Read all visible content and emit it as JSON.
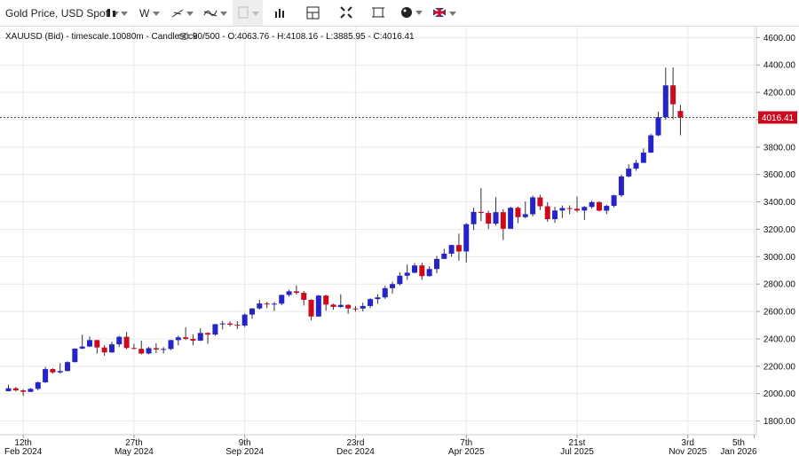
{
  "toolbar": {
    "symbol": "Gold Price, USD Spot",
    "interval": "W"
  },
  "chart_data": {
    "type": "candlestick",
    "subtitle": "XAUUSD (Bid) - timescale.10080m - Candlestick",
    "info": "90/500 - O:4063.76 - H:4108.16 - L:3885.95 - C:4016.41",
    "up_color": "#2424c8",
    "down_color": "#cc0a1e",
    "grid": true,
    "y_axis_side": "right",
    "ylim": [
      1700,
      4680
    ],
    "yticks": [
      {
        "value": 1800,
        "label": "1800.00"
      },
      {
        "value": 2000,
        "label": "2000.00"
      },
      {
        "value": 2200,
        "label": "2200.00"
      },
      {
        "value": 2400,
        "label": "2400.00"
      },
      {
        "value": 2600,
        "label": "2600.00"
      },
      {
        "value": 2800,
        "label": "2800.00"
      },
      {
        "value": 3000,
        "label": "3000.00"
      },
      {
        "value": 3200,
        "label": "3200.00"
      },
      {
        "value": 3400,
        "label": "3400.00"
      },
      {
        "value": 3600,
        "label": "3600.00"
      },
      {
        "value": 3800,
        "label": "3800.00"
      },
      {
        "value": 4000,
        "label": "4000.00"
      },
      {
        "value": 4200,
        "label": "4200.00"
      },
      {
        "value": 4400,
        "label": "4400.00"
      },
      {
        "value": 4600,
        "label": "4600.00"
      }
    ],
    "xlim": [
      "2024-01-21",
      "2026-01-07"
    ],
    "xticks": [
      {
        "value": "2024-02-12",
        "label": "12th",
        "sublabel": "Feb 2024"
      },
      {
        "value": "2024-05-27",
        "label": "27th",
        "sublabel": "May 2024"
      },
      {
        "value": "2024-09-09",
        "label": "9th",
        "sublabel": "Sep 2024"
      },
      {
        "value": "2024-12-23",
        "label": "23rd",
        "sublabel": "Dec 2024"
      },
      {
        "value": "2025-04-07",
        "label": "7th",
        "sublabel": "Apr 2025"
      },
      {
        "value": "2025-07-21",
        "label": "21st",
        "sublabel": "Jul 2025"
      },
      {
        "value": "2025-11-03",
        "label": "3rd",
        "sublabel": "Nov 2025"
      },
      {
        "value": "2026-01-05",
        "label": "5th",
        "sublabel": "Jan 2026"
      }
    ],
    "x": [
      "2024-01-29",
      "2024-02-05",
      "2024-02-12",
      "2024-02-19",
      "2024-02-26",
      "2024-03-04",
      "2024-03-11",
      "2024-03-18",
      "2024-03-25",
      "2024-04-01",
      "2024-04-08",
      "2024-04-15",
      "2024-04-22",
      "2024-04-29",
      "2024-05-06",
      "2024-05-13",
      "2024-05-20",
      "2024-05-27",
      "2024-06-03",
      "2024-06-10",
      "2024-06-17",
      "2024-06-24",
      "2024-07-01",
      "2024-07-08",
      "2024-07-15",
      "2024-07-22",
      "2024-07-29",
      "2024-08-05",
      "2024-08-12",
      "2024-08-19",
      "2024-08-26",
      "2024-09-02",
      "2024-09-09",
      "2024-09-16",
      "2024-09-23",
      "2024-09-30",
      "2024-10-07",
      "2024-10-14",
      "2024-10-21",
      "2024-10-28",
      "2024-11-04",
      "2024-11-11",
      "2024-11-18",
      "2024-11-25",
      "2024-12-02",
      "2024-12-09",
      "2024-12-16",
      "2024-12-23",
      "2024-12-30",
      "2025-01-06",
      "2025-01-13",
      "2025-01-20",
      "2025-01-27",
      "2025-02-03",
      "2025-02-10",
      "2025-02-17",
      "2025-02-24",
      "2025-03-03",
      "2025-03-10",
      "2025-03-17",
      "2025-03-24",
      "2025-03-31",
      "2025-04-07",
      "2025-04-14",
      "2025-04-21",
      "2025-04-28",
      "2025-05-05",
      "2025-05-12",
      "2025-05-19",
      "2025-05-26",
      "2025-06-02",
      "2025-06-09",
      "2025-06-16",
      "2025-06-23",
      "2025-06-30",
      "2025-07-07",
      "2025-07-14",
      "2025-07-21",
      "2025-07-28",
      "2025-08-04",
      "2025-08-11",
      "2025-08-18",
      "2025-08-25",
      "2025-09-01",
      "2025-09-08",
      "2025-09-15",
      "2025-09-22",
      "2025-09-29",
      "2025-10-06",
      "2025-10-13",
      "2025-10-20",
      "2025-10-27"
    ],
    "open": [
      2018,
      2039,
      2024,
      2013,
      2035,
      2083,
      2179,
      2155,
      2165,
      2230,
      2329,
      2344,
      2391,
      2337,
      2301,
      2360,
      2415,
      2333,
      2327,
      2293,
      2332,
      2322,
      2326,
      2391,
      2411,
      2400,
      2387,
      2443,
      2431,
      2507,
      2512,
      2503,
      2497,
      2577,
      2622,
      2658,
      2653,
      2657,
      2721,
      2747,
      2736,
      2685,
      2563,
      2716,
      2650,
      2633,
      2648,
      2622,
      2621,
      2640,
      2690,
      2703,
      2770,
      2800,
      2861,
      2883,
      2936,
      2858,
      2910,
      2984,
      3022,
      3085,
      3038,
      3237,
      3327,
      3319,
      3241,
      3325,
      3204,
      3357,
      3289,
      3310,
      3433,
      3368,
      3274,
      3337,
      3355,
      3350,
      3337,
      3363,
      3398,
      3336,
      3371,
      3448,
      3586,
      3643,
      3685,
      3760,
      3886,
      4018,
      4251,
      4063.76
    ],
    "high": [
      2065,
      2049,
      2032,
      2041,
      2088,
      2195,
      2185,
      2222,
      2236,
      2330,
      2431,
      2417,
      2392,
      2354,
      2378,
      2422,
      2450,
      2364,
      2387,
      2342,
      2368,
      2340,
      2392,
      2424,
      2483,
      2432,
      2477,
      2448,
      2509,
      2531,
      2528,
      2529,
      2586,
      2625,
      2685,
      2670,
      2670,
      2722,
      2758,
      2790,
      2750,
      2689,
      2721,
      2722,
      2657,
      2726,
      2652,
      2639,
      2664,
      2697,
      2726,
      2786,
      2817,
      2886,
      2942,
      2954,
      2956,
      2930,
      3005,
      3057,
      3087,
      3168,
      3245,
      3358,
      3500,
      3335,
      3435,
      3347,
      3366,
      3366,
      3403,
      3446,
      3452,
      3398,
      3365,
      3374,
      3375,
      3439,
      3370,
      3409,
      3405,
      3379,
      3453,
      3599,
      3674,
      3707,
      3791,
      3897,
      4059,
      4381,
      4382,
      4108.16
    ],
    "low": [
      2016,
      2015,
      1984,
      2011,
      2024,
      2078,
      2146,
      2146,
      2163,
      2228,
      2325,
      2341,
      2292,
      2277,
      2298,
      2340,
      2325,
      2323,
      2286,
      2287,
      2296,
      2293,
      2318,
      2353,
      2392,
      2353,
      2383,
      2364,
      2423,
      2470,
      2491,
      2471,
      2485,
      2546,
      2614,
      2625,
      2603,
      2645,
      2708,
      2723,
      2643,
      2536,
      2563,
      2605,
      2613,
      2625,
      2583,
      2599,
      2600,
      2625,
      2656,
      2692,
      2730,
      2790,
      2832,
      2879,
      2832,
      2855,
      2880,
      2982,
      3000,
      2971,
      2957,
      3194,
      3260,
      3202,
      3228,
      3121,
      3204,
      3245,
      3280,
      3294,
      3340,
      3255,
      3247,
      3283,
      3310,
      3324,
      3268,
      3351,
      3331,
      3311,
      3360,
      3436,
      3578,
      3627,
      3686,
      3757,
      3880,
      4000,
      4004,
      3885.95
    ],
    "close": [
      2039,
      2024,
      2013,
      2035,
      2083,
      2179,
      2155,
      2165,
      2230,
      2329,
      2344,
      2391,
      2337,
      2301,
      2360,
      2415,
      2333,
      2327,
      2293,
      2332,
      2322,
      2326,
      2391,
      2411,
      2400,
      2387,
      2443,
      2431,
      2507,
      2512,
      2503,
      2497,
      2577,
      2622,
      2658,
      2653,
      2657,
      2721,
      2747,
      2736,
      2685,
      2563,
      2716,
      2650,
      2633,
      2648,
      2622,
      2621,
      2640,
      2690,
      2703,
      2770,
      2800,
      2861,
      2883,
      2936,
      2858,
      2910,
      2984,
      3022,
      3085,
      3038,
      3237,
      3327,
      3319,
      3241,
      3325,
      3204,
      3357,
      3289,
      3310,
      3433,
      3368,
      3274,
      3337,
      3355,
      3350,
      3337,
      3363,
      3398,
      3336,
      3371,
      3448,
      3586,
      3643,
      3685,
      3760,
      3886,
      4018,
      4251,
      4113,
      4016.41
    ]
  }
}
